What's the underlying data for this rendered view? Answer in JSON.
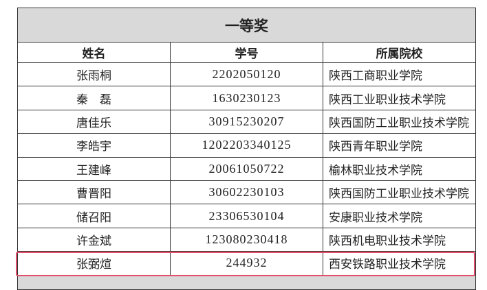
{
  "title": "一等奖",
  "columns": [
    "姓名",
    "学号",
    "所属院校"
  ],
  "rows": [
    [
      "张雨桐",
      "2202050120",
      "陕西工商职业学院"
    ],
    [
      "秦　磊",
      "1630230123",
      "陕西工业职业技术学院"
    ],
    [
      "唐佳乐",
      "30915230207",
      "陕西国防工业职业技术学院"
    ],
    [
      "李皓宇",
      "120220334012​5",
      "陕西青年职业学院"
    ],
    [
      "王建峰",
      "20061050722",
      "榆林职业技术学院"
    ],
    [
      "曹晋阳",
      "30602230103",
      "陕西国防工业职业技术学院"
    ],
    [
      "储召阳",
      "23306530104",
      "安康职业技术学院"
    ],
    [
      "许金斌",
      "123080230418",
      "陕西机电职业技术学院"
    ],
    [
      "张弼煊",
      "244932",
      "西安铁路职业技术学院"
    ]
  ],
  "highlight_color": "#e0506a"
}
